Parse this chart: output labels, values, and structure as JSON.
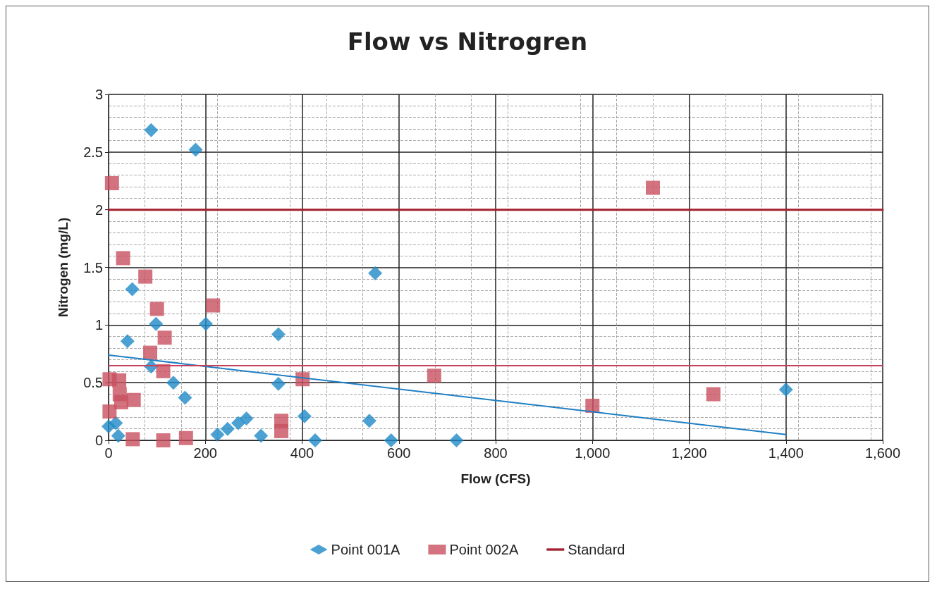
{
  "chart_data": {
    "type": "scatter",
    "title": "Flow vs Nitrogren",
    "xlabel": "Flow (CFS)",
    "ylabel": "Nitrogen (mg/L)",
    "xlim": [
      0,
      1600
    ],
    "xticks": [
      0,
      200,
      400,
      600,
      800,
      {
        "value": 1000,
        "label": "1,000"
      },
      {
        "value": 1200,
        "label": "1,200"
      },
      {
        "value": 1400,
        "label": "1,400"
      },
      {
        "value": 1600,
        "label": "1,600"
      }
    ],
    "ylim": [
      0,
      3
    ],
    "yticks": [
      0,
      0.5,
      1,
      1.5,
      2,
      2.5,
      3
    ],
    "grid": true,
    "legend": "bottom",
    "series": [
      {
        "name": "Point 001A",
        "marker": "diamond",
        "color": "#1f8ac8",
        "x": [
          88,
          180,
          49,
          98,
          39,
          201,
          351,
          551,
          88,
          134,
          158,
          351,
          0,
          15,
          20,
          225,
          246,
          268,
          285,
          315,
          405,
          427,
          539,
          584,
          719,
          1400
        ],
        "values": [
          2.69,
          2.52,
          1.31,
          1.01,
          0.86,
          1.01,
          0.92,
          1.45,
          0.64,
          0.5,
          0.37,
          0.49,
          0.12,
          0.15,
          0.04,
          0.05,
          0.1,
          0.15,
          0.19,
          0.04,
          0.21,
          0,
          0.17,
          0,
          0,
          0.44
        ]
      },
      {
        "name": "Point 002A",
        "marker": "square",
        "color": "#c8505f",
        "x": [
          7,
          30,
          76,
          100,
          216,
          116,
          86,
          113,
          2,
          22,
          23,
          26,
          52,
          2,
          50,
          113,
          160,
          357,
          357,
          401,
          673,
          1000,
          1250,
          1125
        ],
        "values": [
          2.23,
          1.58,
          1.42,
          1.14,
          1.17,
          0.89,
          0.76,
          0.6,
          0.53,
          0.52,
          0.4,
          0.33,
          0.35,
          0.25,
          0.01,
          0,
          0.02,
          0.17,
          0.08,
          0.53,
          0.56,
          0.3,
          0.4,
          2.19
        ]
      },
      {
        "name": "Standard",
        "type": "line",
        "marker": "none",
        "color": "#a3202e",
        "x": [
          0,
          1600
        ],
        "values": [
          2,
          2
        ]
      },
      {
        "type": "line",
        "marker": "none",
        "color": "#1f7fc4",
        "x": [
          0,
          1400
        ],
        "values": [
          0.74,
          0.05
        ]
      }
    ],
    "ref_lines": [
      {
        "axis": "y",
        "value": 0.65,
        "color": "#c8405a"
      }
    ]
  }
}
